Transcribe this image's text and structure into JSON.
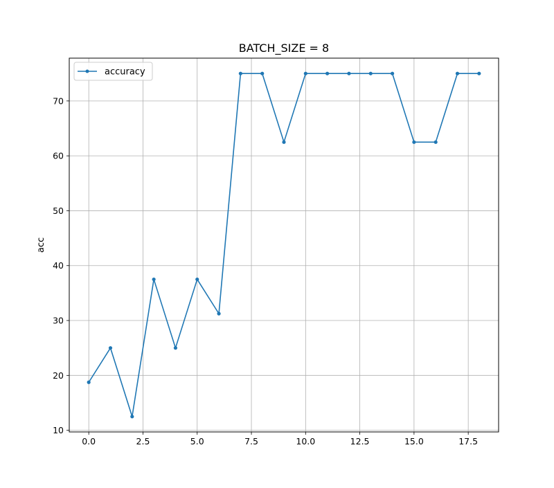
{
  "chart_data": {
    "type": "line",
    "title": "BATCH_SIZE = 8",
    "xlabel": "",
    "ylabel": "acc",
    "xlim": [
      -0.9,
      18.9
    ],
    "ylim": [
      9.7,
      77.8
    ],
    "x_ticks": [
      0.0,
      2.5,
      5.0,
      7.5,
      10.0,
      12.5,
      15.0,
      17.5
    ],
    "x_tick_labels": [
      "0.0",
      "2.5",
      "5.0",
      "7.5",
      "10.0",
      "12.5",
      "15.0",
      "17.5"
    ],
    "y_ticks": [
      10,
      20,
      30,
      40,
      50,
      60,
      70
    ],
    "y_tick_labels": [
      "10",
      "20",
      "30",
      "40",
      "50",
      "60",
      "70"
    ],
    "grid": true,
    "legend_position": "top-left",
    "series": [
      {
        "name": "accuracy",
        "color": "#1f77b4",
        "marker": "circle",
        "x": [
          0,
          1,
          2,
          3,
          4,
          5,
          6,
          7,
          8,
          9,
          10,
          11,
          12,
          13,
          14,
          15,
          16,
          17,
          18
        ],
        "values": [
          18.75,
          25.0,
          12.5,
          37.5,
          25.0,
          37.5,
          31.25,
          75.0,
          75.0,
          62.5,
          75.0,
          75.0,
          75.0,
          75.0,
          75.0,
          62.5,
          62.5,
          75.0,
          75.0
        ]
      }
    ]
  }
}
